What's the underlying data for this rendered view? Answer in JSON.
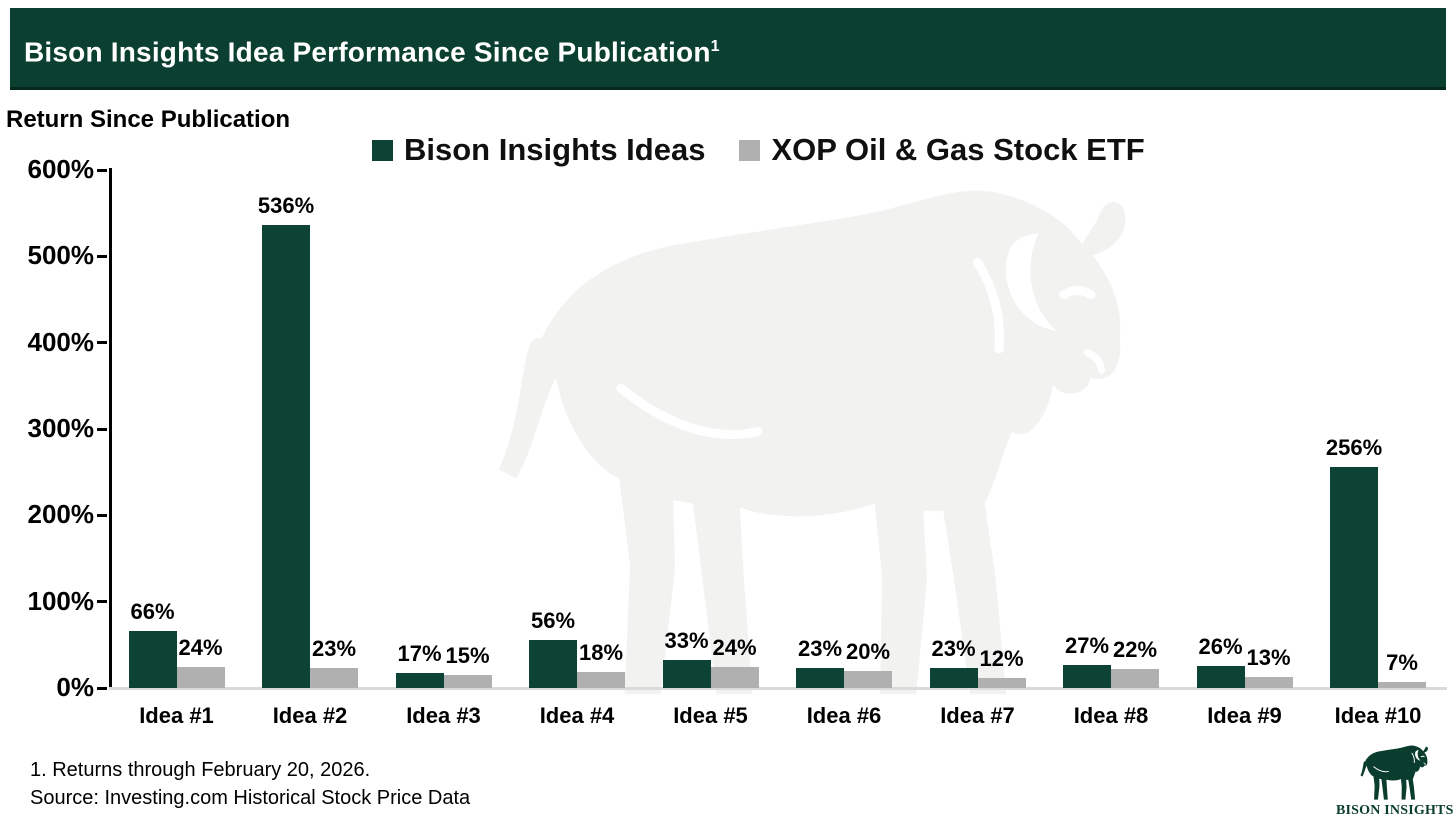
{
  "header": {
    "title": "Bison Insights Idea Performance Since Publication",
    "superscript": "1"
  },
  "axis_title": "Return Since Publication",
  "legend": {
    "items": [
      {
        "label": "Bison Insights Ideas",
        "color": "#0c4334"
      },
      {
        "label": "XOP Oil & Gas Stock ETF",
        "color": "#b0b0b0"
      }
    ]
  },
  "chart_data": {
    "type": "bar",
    "title": "Bison Insights Idea Performance Since Publication",
    "ylabel": "Return Since Publication",
    "categories": [
      "Idea #1",
      "Idea #2",
      "Idea #3",
      "Idea #4",
      "Idea #5",
      "Idea #6",
      "Idea #7",
      "Idea #8",
      "Idea #9",
      "Idea #10"
    ],
    "series": [
      {
        "name": "Bison Insights Ideas",
        "color": "#0c4334",
        "values": [
          66,
          536,
          17,
          56,
          33,
          23,
          23,
          27,
          26,
          256
        ]
      },
      {
        "name": "XOP Oil & Gas Stock ETF",
        "color": "#b0b0b0",
        "values": [
          24,
          23,
          15,
          18,
          24,
          20,
          12,
          22,
          13,
          7
        ]
      }
    ],
    "value_suffix": "%",
    "ylim": [
      0,
      600
    ],
    "yticks": [
      0,
      100,
      200,
      300,
      400,
      500,
      600
    ],
    "ytick_suffix": "%",
    "grid": false,
    "legend_position": "top"
  },
  "footnotes": {
    "line1": "1. Returns through February 20, 2026.",
    "line2": "Source: Investing.com Historical Stock Price Data"
  },
  "logo": {
    "label": "BISON INSIGHTS"
  },
  "colors": {
    "header_bg": "#0b4031",
    "bar_green": "#0c4334",
    "bar_gray": "#b0b0b0",
    "watermark": "#f2f2f0",
    "baseline": "#dadada",
    "logo_green": "#0b3d2e"
  }
}
